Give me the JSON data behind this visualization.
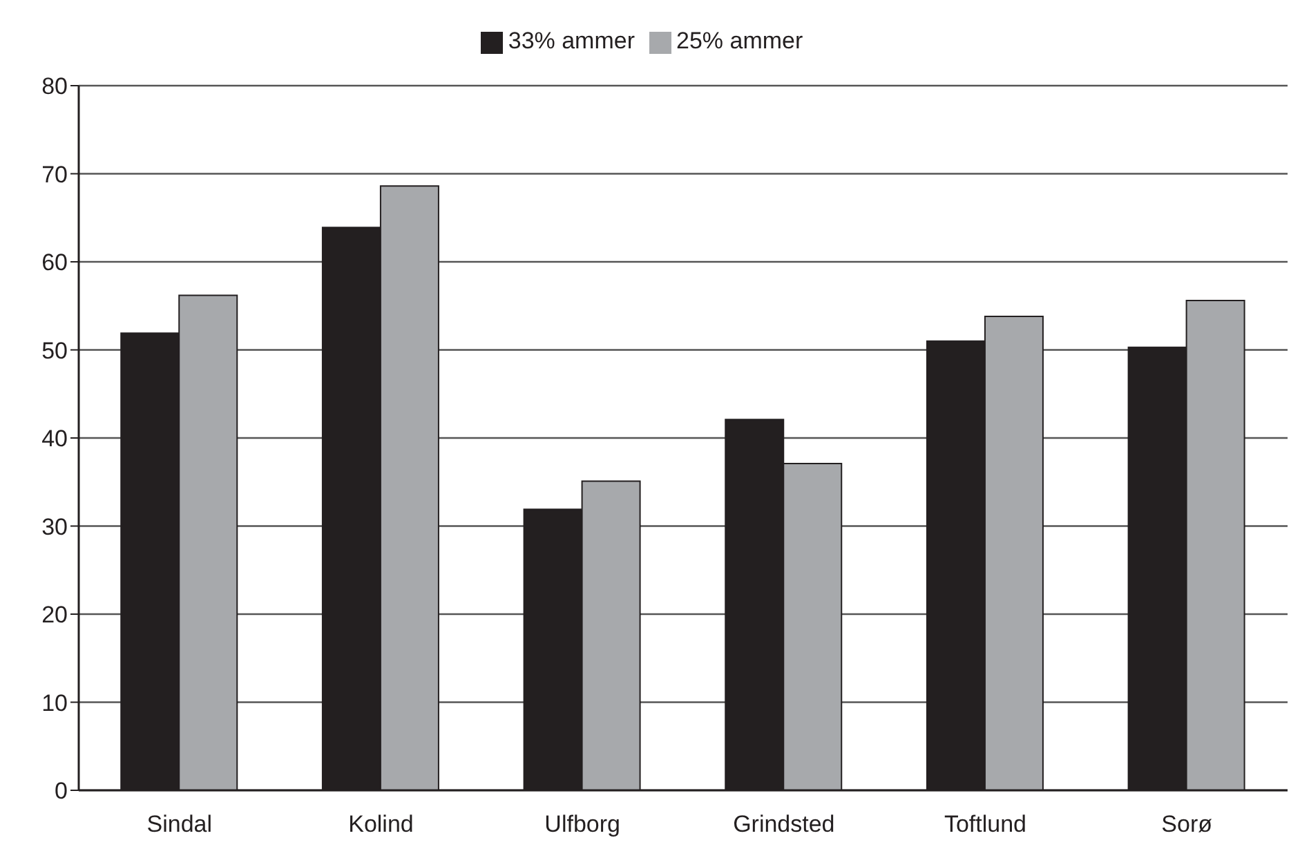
{
  "chart_data": {
    "type": "bar",
    "categories": [
      "Sindal",
      "Kolind",
      "Ulfborg",
      "Grindsted",
      "Toftlund",
      "Sorø"
    ],
    "series": [
      {
        "name": "33% ammer",
        "color": "#231f20",
        "values": [
          51.9,
          63.9,
          31.9,
          42.1,
          51.0,
          50.3
        ]
      },
      {
        "name": "25% ammer",
        "color": "#a7a9ac",
        "values": [
          56.2,
          68.6,
          35.1,
          37.1,
          53.8,
          55.6
        ]
      }
    ],
    "ylim": [
      0,
      80
    ],
    "yticks": [
      0,
      10,
      20,
      30,
      40,
      50,
      60,
      70,
      80
    ],
    "grid": "y",
    "legend": "top"
  }
}
